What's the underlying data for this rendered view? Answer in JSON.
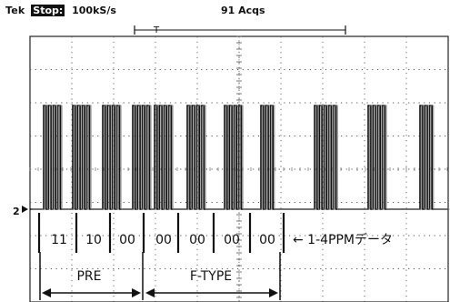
{
  "header": {
    "brand": "Tek",
    "state": "Stop:",
    "sample_rate": "100kS/s",
    "acquisitions": "91 Acqs",
    "trigger_marker": "T"
  },
  "chart_data": {
    "type": "line",
    "title": "",
    "channel_marker": "2",
    "grid": true,
    "signal": {
      "levels": [
        "low",
        "high"
      ],
      "pulse_groups": [
        {
          "label": "11",
          "pulses": 4
        },
        {
          "label": "10",
          "pulses": 4
        },
        {
          "label": "00",
          "pulses": 4
        },
        {
          "label": "00",
          "pulses": 4
        },
        {
          "label": "00",
          "pulses": 4
        },
        {
          "label": "00",
          "pulses": 4
        },
        {
          "label": "00",
          "pulses": 4
        },
        {
          "label": "",
          "pulses": 3
        },
        {
          "label": "",
          "pulses": 5
        },
        {
          "label": "",
          "pulses": 4
        },
        {
          "label": "",
          "pulses": 3
        }
      ]
    },
    "symbol_labels": [
      "11",
      "10",
      "00",
      "00",
      "00",
      "00",
      "00"
    ],
    "annotations": {
      "data_label": "← 1-4PPMデータ",
      "pre_label": "PRE",
      "ftype_label": "F-TYPE"
    }
  }
}
